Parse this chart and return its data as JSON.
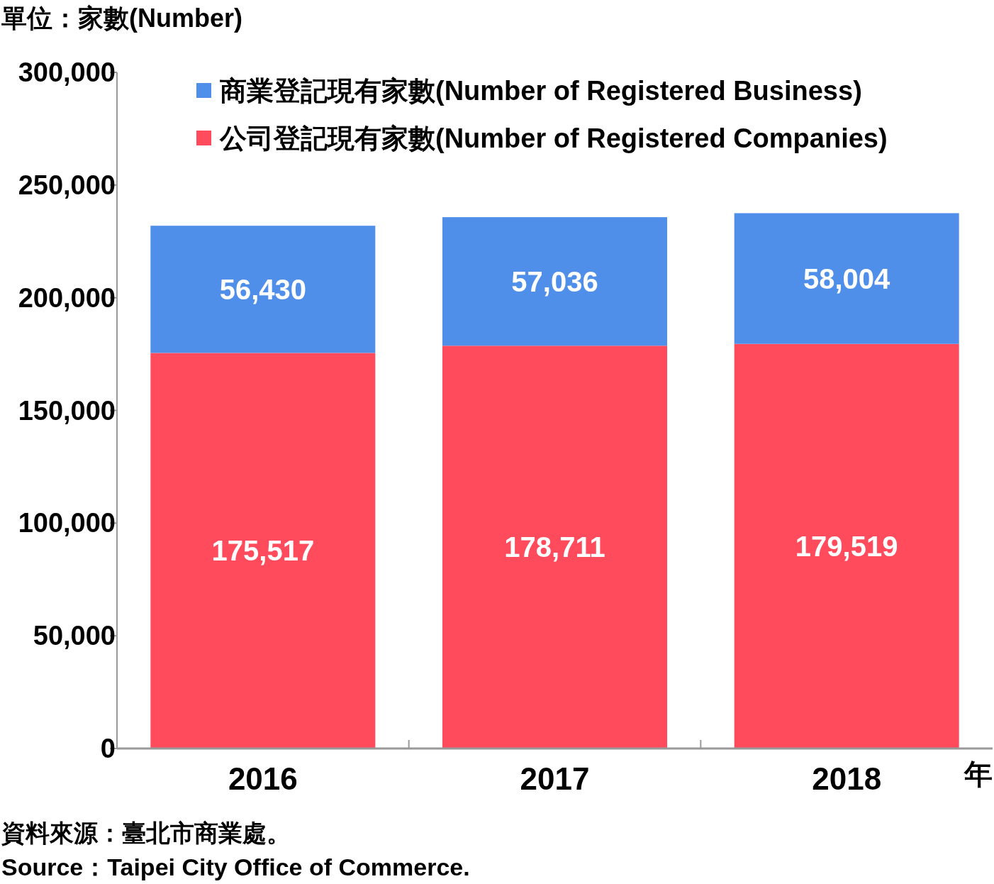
{
  "chart_data": {
    "type": "bar",
    "stacked": true,
    "ylabel": "單位：家數(Number)",
    "xlabel": "年",
    "categories": [
      "2016",
      "2017",
      "2018"
    ],
    "series": [
      {
        "name": "公司登記現有家數(Number of Registered Companies)",
        "color": "#ff4b5c",
        "values": [
          175517,
          178711,
          179519
        ],
        "value_labels": [
          "175,517",
          "178,711",
          "179,519"
        ]
      },
      {
        "name": "商業登記現有家數(Number of Registered Business)",
        "color": "#4f8fea",
        "values": [
          56430,
          57036,
          58004
        ],
        "value_labels": [
          "56,430",
          "57,036",
          "58,004"
        ]
      }
    ],
    "ylim": [
      0,
      300000
    ],
    "yticks": [
      {
        "value": 0,
        "label": "0"
      },
      {
        "value": 50000,
        "label": "50,000"
      },
      {
        "value": 100000,
        "label": "100,000"
      },
      {
        "value": 150000,
        "label": "150,000"
      },
      {
        "value": 200000,
        "label": "200,000"
      },
      {
        "value": 250000,
        "label": "250,000"
      },
      {
        "value": 300000,
        "label": "300,000"
      }
    ],
    "legend": "top",
    "grid": false,
    "annotations": [
      "資料來源：臺北市商業處。",
      "Source：Taipei City Office of Commerce."
    ]
  }
}
